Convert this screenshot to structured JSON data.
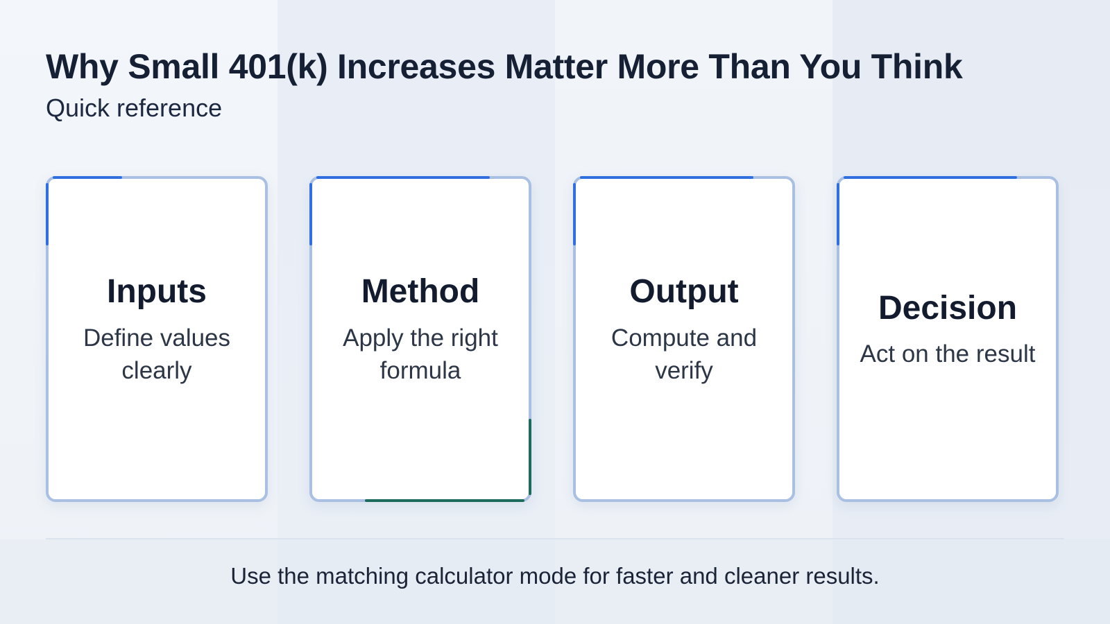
{
  "header": {
    "title": "Why Small 401(k) Increases Matter More Than You Think",
    "subtitle": "Quick reference"
  },
  "cards": [
    {
      "title": "Inputs",
      "description": "Define values clearly"
    },
    {
      "title": "Method",
      "description": "Apply the right formula"
    },
    {
      "title": "Output",
      "description": "Compute and verify"
    },
    {
      "title": "Decision",
      "description": "Act on the result"
    }
  ],
  "footer": {
    "text": "Use the matching calculator mode for faster and cleaner results."
  },
  "colors": {
    "accent_blue": "#2f6fe0",
    "accent_green": "#1d6b5c",
    "card_border": "#a9c0e3",
    "title_text": "#152035"
  }
}
